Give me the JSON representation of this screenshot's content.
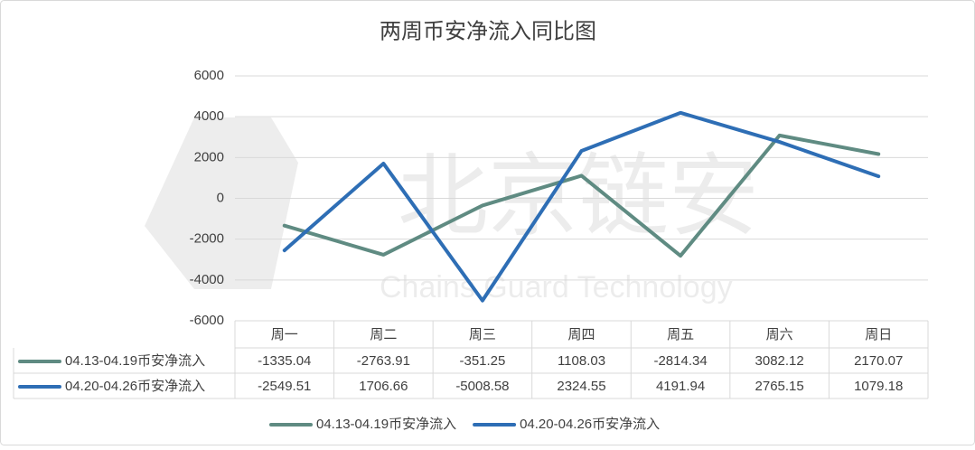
{
  "chart_data": {
    "type": "line",
    "title": "两周币安净流入同比图",
    "watermark": {
      "text": "北京链安",
      "subtext": "Chains Guard Technology"
    },
    "categories": [
      "周一",
      "周二",
      "周三",
      "周四",
      "周五",
      "周六",
      "周日"
    ],
    "series": [
      {
        "name": "04.13-04.19币安净流入",
        "color": "#5f8b82",
        "values": [
          -1335.04,
          -2763.91,
          -351.25,
          1108.03,
          -2814.34,
          3082.12,
          2170.07
        ]
      },
      {
        "name": "04.20-04.26币安净流入",
        "color": "#2e6eb5",
        "values": [
          -2549.51,
          1706.66,
          -5008.58,
          2324.55,
          4191.94,
          2765.15,
          1079.18
        ]
      }
    ],
    "ylim": [
      -6000,
      6000
    ],
    "yticks": [
      -6000,
      -4000,
      -2000,
      0,
      2000,
      4000,
      6000
    ],
    "grid": true,
    "data_table": true,
    "legend": "bottom"
  }
}
